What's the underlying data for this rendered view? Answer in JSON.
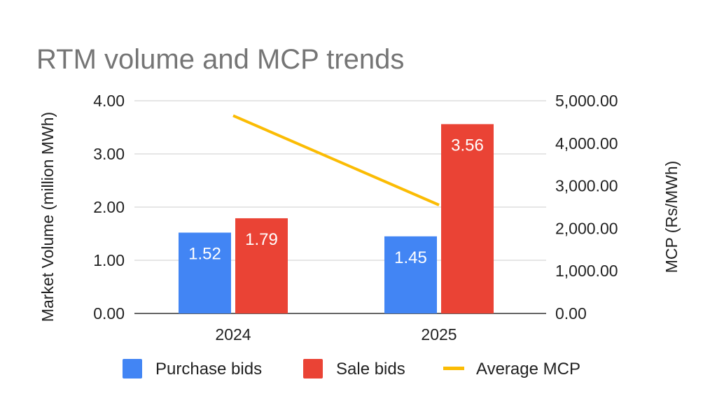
{
  "chart_data": {
    "type": "bar",
    "title": "RTM volume and MCP trends",
    "categories": [
      "2024",
      "2025"
    ],
    "series": [
      {
        "name": "Purchase bids",
        "type": "bar",
        "axis": "left",
        "color": "#4285F4",
        "values": [
          1.52,
          1.45
        ],
        "labels": [
          "1.52",
          "1.45"
        ]
      },
      {
        "name": "Sale bids",
        "type": "bar",
        "axis": "left",
        "color": "#EA4335",
        "values": [
          1.79,
          3.56
        ],
        "labels": [
          "1.79",
          "3.56"
        ]
      },
      {
        "name": "Average MCP",
        "type": "line",
        "axis": "right",
        "color": "#FBBC04",
        "values": [
          4650,
          2550
        ]
      }
    ],
    "y_left": {
      "label": "Market Volume (million MWh)",
      "ylim": [
        0,
        4
      ],
      "ticks": [
        "0.00",
        "1.00",
        "2.00",
        "3.00",
        "4.00"
      ]
    },
    "y_right": {
      "label": "MCP (Rs/MWh)",
      "ylim": [
        0,
        5000
      ],
      "ticks": [
        "0.00",
        "1,000.00",
        "2,000.00",
        "3,000.00",
        "4,000.00",
        "5,000.00"
      ]
    },
    "grid": true,
    "legend": "bottom"
  }
}
